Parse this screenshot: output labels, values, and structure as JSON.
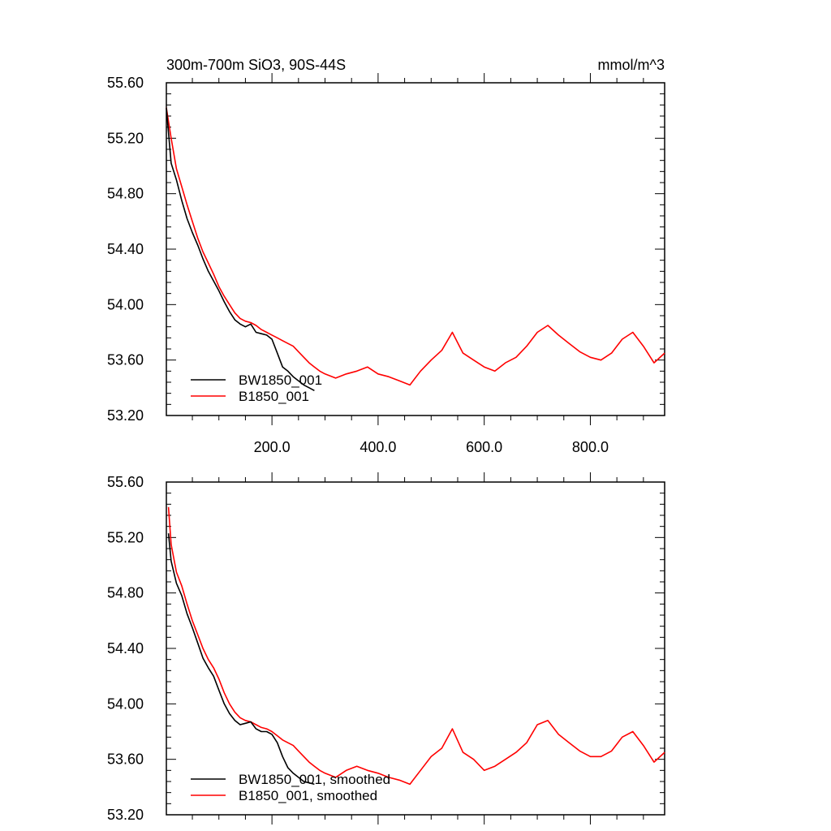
{
  "chart_data": [
    {
      "type": "line",
      "title": "300m-700m SiO3, 90S-44S",
      "units": "mmol/m^3",
      "xlabel": "",
      "ylabel": "",
      "xlim": [
        1,
        940
      ],
      "ylim": [
        53.2,
        55.6
      ],
      "x_tick_labels": [
        "200.0",
        "400.0",
        "600.0",
        "800.0"
      ],
      "y_tick_labels": [
        "55.60",
        "55.20",
        "54.80",
        "54.40",
        "54.00",
        "53.60",
        "53.20"
      ],
      "grid": false,
      "legend_position": "bottom-left",
      "series": [
        {
          "name": "BW1850_001",
          "color": "#000000",
          "x": [
            1,
            10,
            20,
            30,
            40,
            50,
            60,
            70,
            80,
            90,
            100,
            110,
            120,
            130,
            140,
            150,
            160,
            170,
            180,
            190,
            200,
            210,
            220,
            230,
            240,
            250,
            260,
            270,
            280
          ],
          "y": [
            55.42,
            55.02,
            54.9,
            54.75,
            54.62,
            54.52,
            54.43,
            54.33,
            54.24,
            54.17,
            54.1,
            54.02,
            53.95,
            53.89,
            53.86,
            53.84,
            53.86,
            53.8,
            53.79,
            53.78,
            53.75,
            53.65,
            53.55,
            53.52,
            53.48,
            53.45,
            53.42,
            53.4,
            53.38
          ]
        },
        {
          "name": "B1850_001",
          "color": "#ff0000",
          "x": [
            1,
            10,
            20,
            30,
            40,
            50,
            60,
            70,
            80,
            90,
            100,
            110,
            120,
            130,
            140,
            150,
            160,
            170,
            180,
            190,
            200,
            210,
            220,
            230,
            240,
            250,
            260,
            270,
            280,
            290,
            300,
            320,
            340,
            360,
            380,
            400,
            420,
            440,
            460,
            480,
            500,
            520,
            540,
            560,
            580,
            600,
            620,
            640,
            660,
            680,
            700,
            720,
            740,
            760,
            780,
            800,
            820,
            840,
            860,
            880,
            900,
            920,
            940
          ],
          "y": [
            55.42,
            55.2,
            54.98,
            54.85,
            54.72,
            54.6,
            54.48,
            54.38,
            54.3,
            54.22,
            54.13,
            54.06,
            54.0,
            53.94,
            53.9,
            53.88,
            53.87,
            53.85,
            53.82,
            53.8,
            53.78,
            53.76,
            53.74,
            53.72,
            53.7,
            53.66,
            53.62,
            53.58,
            53.55,
            53.52,
            53.5,
            53.47,
            53.5,
            53.52,
            53.55,
            53.5,
            53.48,
            53.45,
            53.42,
            53.52,
            53.6,
            53.67,
            53.8,
            53.65,
            53.6,
            53.55,
            53.52,
            53.58,
            53.62,
            53.7,
            53.8,
            53.85,
            53.78,
            53.72,
            53.66,
            53.62,
            53.6,
            53.65,
            53.75,
            53.8,
            53.7,
            53.58,
            53.65
          ]
        }
      ]
    },
    {
      "type": "line",
      "title": "",
      "xlabel": "",
      "ylabel": "",
      "xlim": [
        1,
        940
      ],
      "ylim": [
        53.2,
        55.6
      ],
      "y_tick_labels": [
        "55.60",
        "55.20",
        "54.80",
        "54.40",
        "54.00",
        "53.60",
        "53.20"
      ],
      "grid": false,
      "legend_position": "bottom-left",
      "series": [
        {
          "name": "BW1850_001, smoothed",
          "color": "#000000",
          "x": [
            5,
            10,
            20,
            30,
            40,
            50,
            60,
            70,
            80,
            90,
            100,
            110,
            120,
            130,
            140,
            150,
            160,
            170,
            180,
            190,
            200,
            210,
            220,
            230,
            240,
            250,
            260,
            270,
            280
          ],
          "y": [
            55.23,
            55.03,
            54.87,
            54.78,
            54.65,
            54.55,
            54.44,
            54.33,
            54.26,
            54.2,
            54.1,
            54.0,
            53.93,
            53.88,
            53.85,
            53.86,
            53.87,
            53.82,
            53.8,
            53.8,
            53.78,
            53.72,
            53.62,
            53.54,
            53.5,
            53.47,
            53.44,
            53.43,
            53.42
          ]
        },
        {
          "name": "B1850_001, smoothed",
          "color": "#ff0000",
          "x": [
            5,
            10,
            20,
            30,
            40,
            50,
            60,
            70,
            80,
            90,
            100,
            110,
            120,
            130,
            140,
            150,
            160,
            170,
            180,
            190,
            200,
            210,
            220,
            230,
            240,
            250,
            260,
            270,
            280,
            290,
            300,
            320,
            340,
            360,
            380,
            400,
            420,
            440,
            460,
            480,
            500,
            520,
            540,
            560,
            580,
            600,
            620,
            640,
            660,
            680,
            700,
            720,
            740,
            760,
            780,
            800,
            820,
            840,
            860,
            880,
            900,
            920,
            940
          ],
          "y": [
            55.42,
            55.15,
            54.95,
            54.85,
            54.72,
            54.6,
            54.5,
            54.4,
            54.32,
            54.26,
            54.18,
            54.08,
            54.0,
            53.94,
            53.9,
            53.88,
            53.87,
            53.85,
            53.83,
            53.82,
            53.8,
            53.77,
            53.74,
            53.72,
            53.7,
            53.66,
            53.62,
            53.58,
            53.55,
            53.52,
            53.5,
            53.47,
            53.52,
            53.55,
            53.52,
            53.5,
            53.47,
            53.45,
            53.42,
            53.52,
            53.62,
            53.68,
            53.82,
            53.65,
            53.6,
            53.52,
            53.55,
            53.6,
            53.65,
            53.72,
            53.85,
            53.88,
            53.78,
            53.72,
            53.66,
            53.62,
            53.62,
            53.66,
            53.76,
            53.8,
            53.7,
            53.58,
            53.65
          ]
        }
      ]
    }
  ]
}
